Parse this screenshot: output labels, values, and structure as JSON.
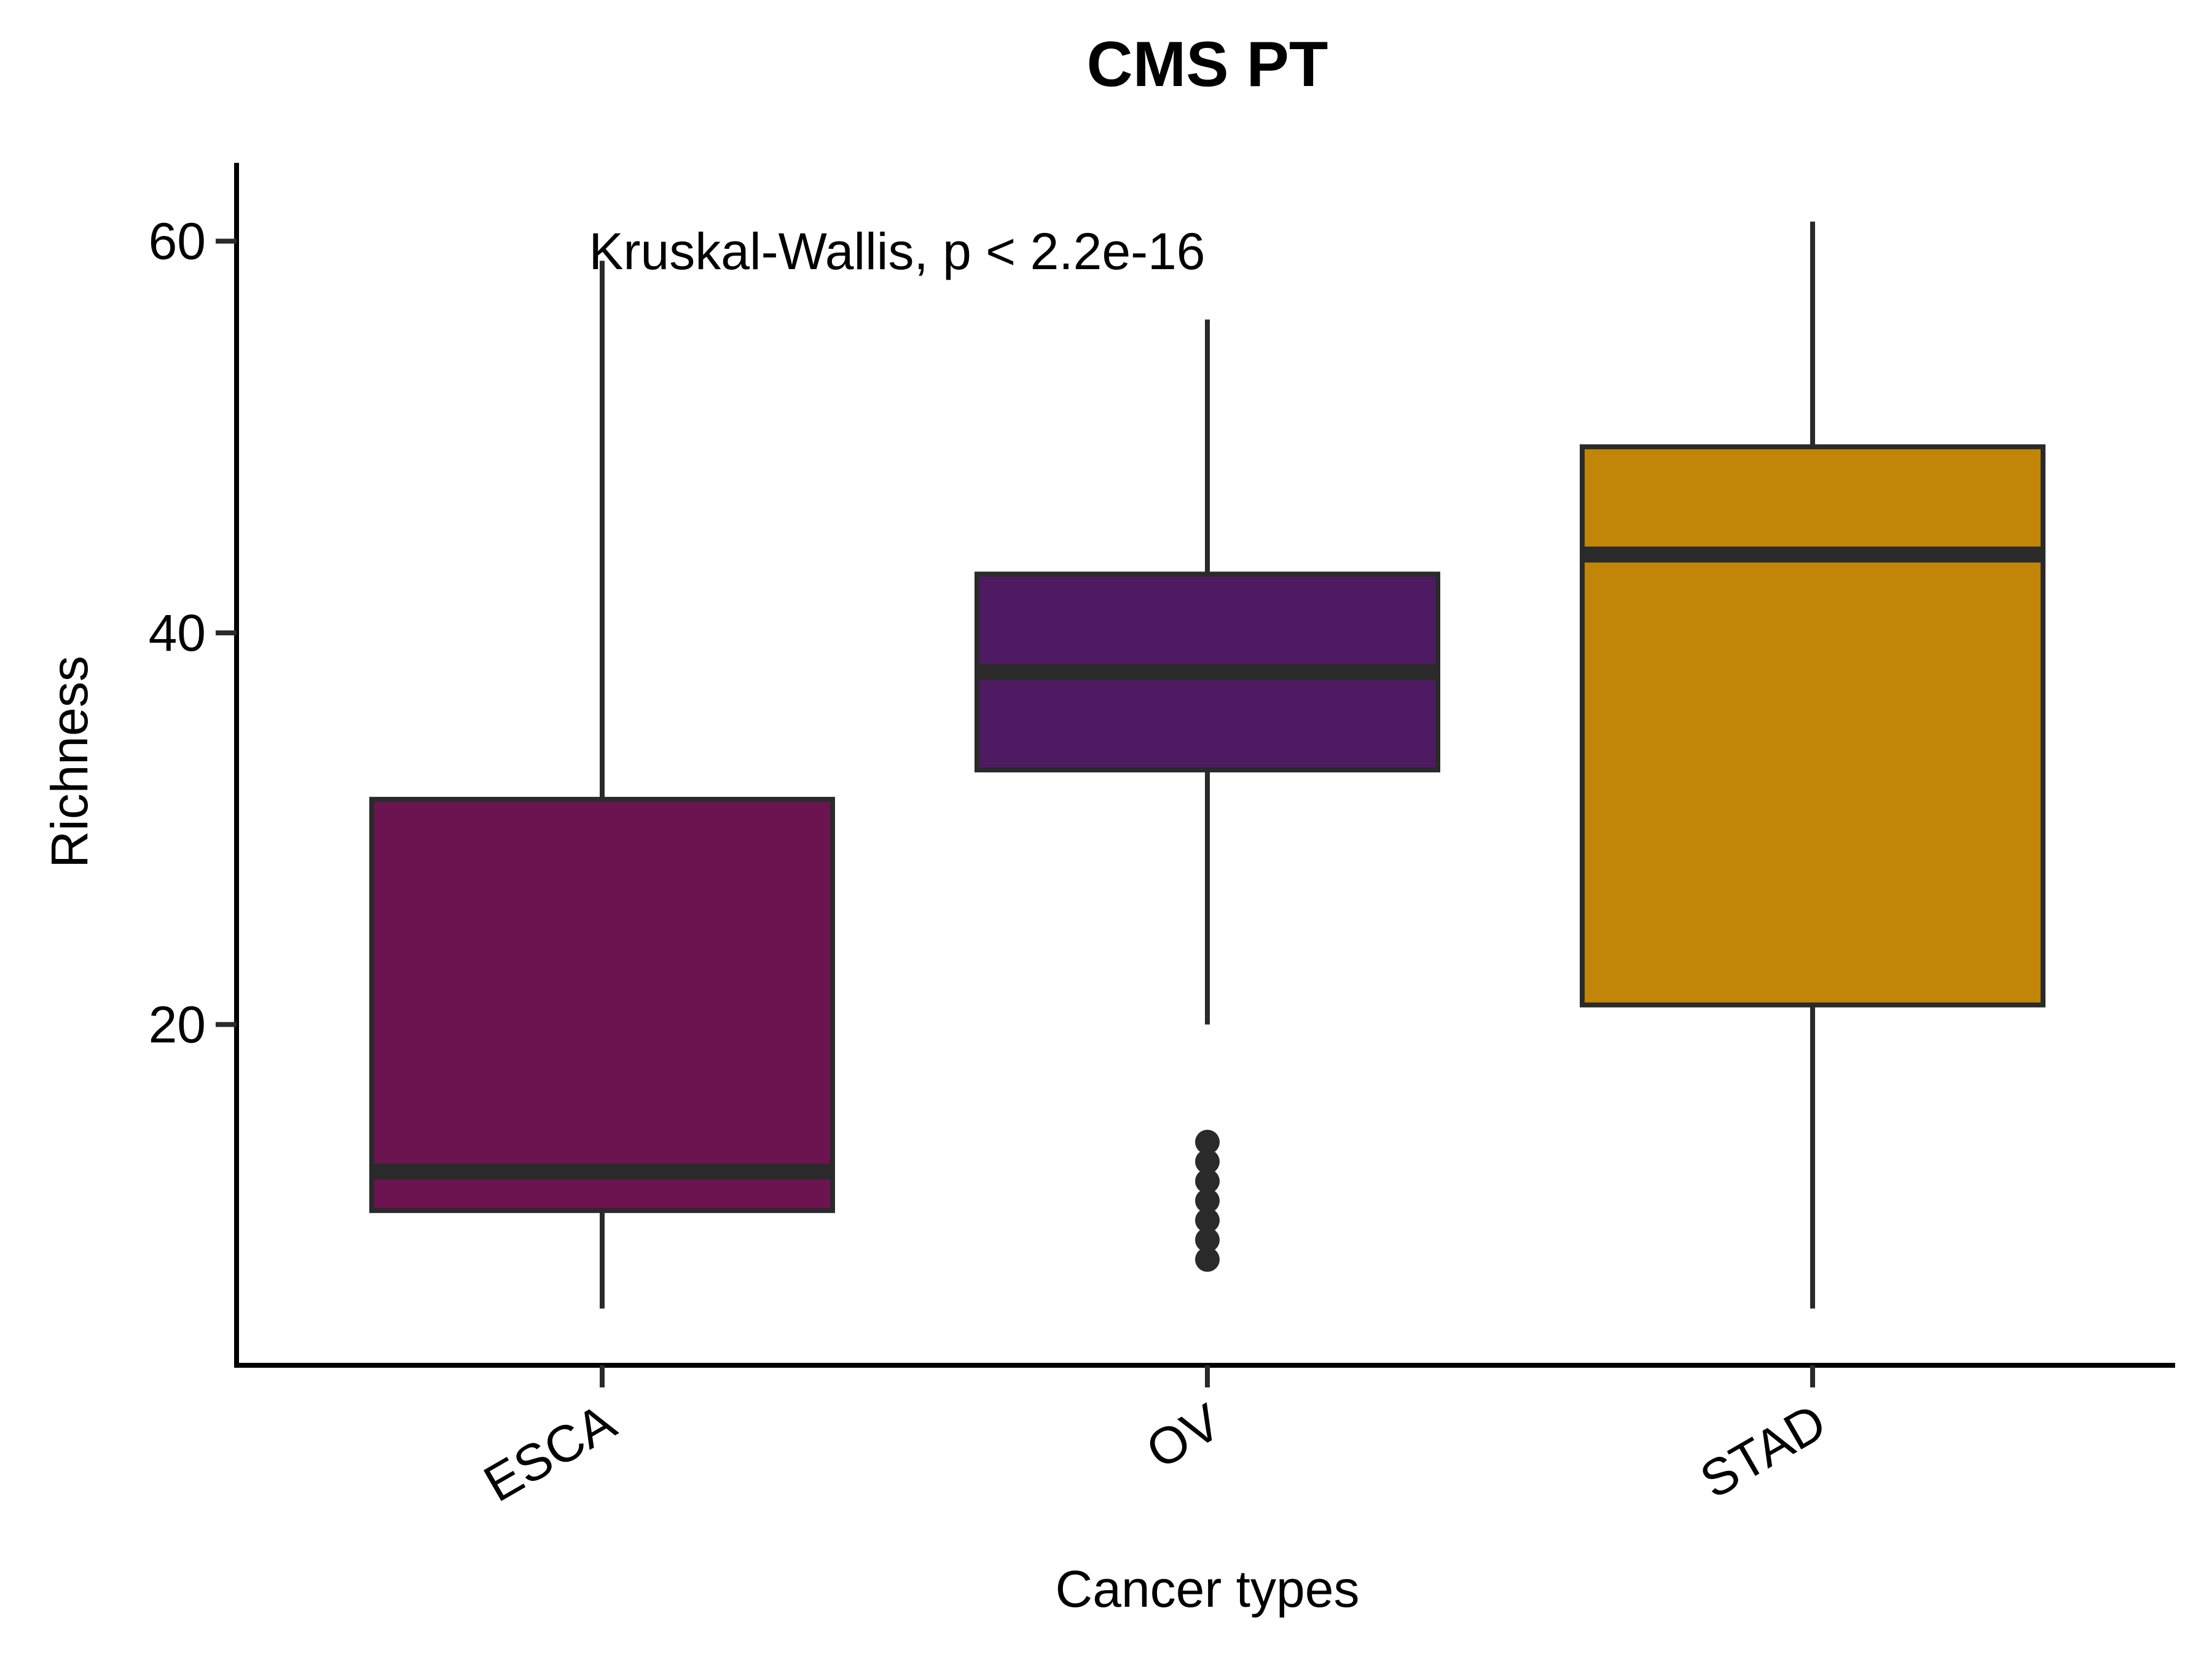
{
  "chart_data": {
    "type": "box",
    "title": "CMS PT",
    "xlabel": "Cancer types",
    "ylabel": "Richness",
    "annotation": "Kruskal-Wallis, p < 2.2e-16",
    "ylim": [
      2.6,
      64
    ],
    "yticks": [
      20,
      40,
      60
    ],
    "y_tick_labels": [
      "20",
      "40",
      "60"
    ],
    "grid": false,
    "legend": "none",
    "categories": [
      "ESCA",
      "OV",
      "STAD"
    ],
    "boxes": [
      {
        "category": "ESCA",
        "min": 5.5,
        "q1": 10.5,
        "median": 12.5,
        "q3": 31.5,
        "max": 59,
        "outliers": [],
        "color": "#6B1450"
      },
      {
        "category": "OV",
        "min": 20,
        "q1": 33,
        "median": 38,
        "q3": 43,
        "max": 56,
        "outliers": [
          8,
          9,
          10,
          11,
          12,
          13,
          14
        ],
        "color": "#4E1A62"
      },
      {
        "category": "STAD",
        "min": 5.5,
        "q1": 21,
        "median": 44,
        "q3": 49.5,
        "max": 61,
        "outliers": [],
        "color": "#C18607"
      }
    ],
    "outline_color": "#2A2A2A"
  }
}
